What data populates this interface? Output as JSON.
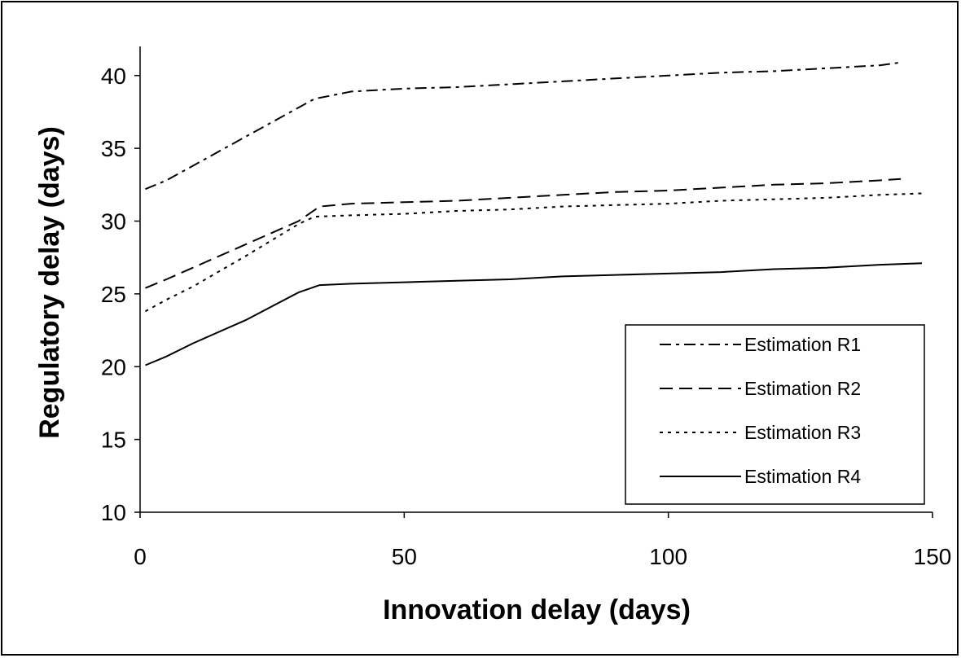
{
  "chart_data": {
    "type": "line",
    "title": "",
    "xlabel": "Innovation delay (days)",
    "ylabel": "Regulatory delay (days)",
    "xlim": [
      0,
      150
    ],
    "ylim": [
      10,
      42
    ],
    "x_ticks": [
      0,
      50,
      100,
      150
    ],
    "y_ticks": [
      10,
      15,
      20,
      25,
      30,
      35,
      40
    ],
    "grid": false,
    "legend_position": "bottom-right",
    "series": [
      {
        "name": "Estimation R1",
        "dash": "dash-dot",
        "points": [
          [
            1,
            32.2
          ],
          [
            5,
            32.8
          ],
          [
            10,
            33.8
          ],
          [
            20,
            35.8
          ],
          [
            30,
            37.8
          ],
          [
            33,
            38.4
          ],
          [
            40,
            38.9
          ],
          [
            50,
            39.1
          ],
          [
            60,
            39.2
          ],
          [
            70,
            39.4
          ],
          [
            80,
            39.6
          ],
          [
            90,
            39.8
          ],
          [
            100,
            40.0
          ],
          [
            110,
            40.2
          ],
          [
            120,
            40.3
          ],
          [
            130,
            40.5
          ],
          [
            140,
            40.7
          ],
          [
            144,
            40.9
          ]
        ]
      },
      {
        "name": "Estimation R2",
        "dash": "dash",
        "points": [
          [
            1,
            25.4
          ],
          [
            5,
            26.0
          ],
          [
            10,
            26.8
          ],
          [
            20,
            28.4
          ],
          [
            30,
            30.0
          ],
          [
            34,
            31.0
          ],
          [
            40,
            31.2
          ],
          [
            50,
            31.3
          ],
          [
            60,
            31.4
          ],
          [
            70,
            31.6
          ],
          [
            80,
            31.8
          ],
          [
            90,
            32.0
          ],
          [
            100,
            32.1
          ],
          [
            110,
            32.3
          ],
          [
            120,
            32.5
          ],
          [
            130,
            32.6
          ],
          [
            140,
            32.8
          ],
          [
            144,
            32.9
          ]
        ]
      },
      {
        "name": "Estimation R3",
        "dash": "dot",
        "points": [
          [
            1,
            23.8
          ],
          [
            5,
            24.6
          ],
          [
            10,
            25.5
          ],
          [
            20,
            27.6
          ],
          [
            30,
            29.8
          ],
          [
            33,
            30.3
          ],
          [
            40,
            30.4
          ],
          [
            50,
            30.5
          ],
          [
            60,
            30.7
          ],
          [
            70,
            30.8
          ],
          [
            80,
            31.0
          ],
          [
            90,
            31.1
          ],
          [
            100,
            31.2
          ],
          [
            110,
            31.4
          ],
          [
            120,
            31.5
          ],
          [
            130,
            31.6
          ],
          [
            140,
            31.8
          ],
          [
            148,
            31.9
          ]
        ]
      },
      {
        "name": "Estimation R4",
        "dash": "solid",
        "points": [
          [
            1,
            20.1
          ],
          [
            5,
            20.7
          ],
          [
            10,
            21.6
          ],
          [
            20,
            23.2
          ],
          [
            30,
            25.1
          ],
          [
            34,
            25.6
          ],
          [
            40,
            25.7
          ],
          [
            50,
            25.8
          ],
          [
            60,
            25.9
          ],
          [
            70,
            26.0
          ],
          [
            80,
            26.2
          ],
          [
            90,
            26.3
          ],
          [
            100,
            26.4
          ],
          [
            110,
            26.5
          ],
          [
            120,
            26.7
          ],
          [
            130,
            26.8
          ],
          [
            140,
            27.0
          ],
          [
            148,
            27.1
          ]
        ]
      }
    ]
  }
}
